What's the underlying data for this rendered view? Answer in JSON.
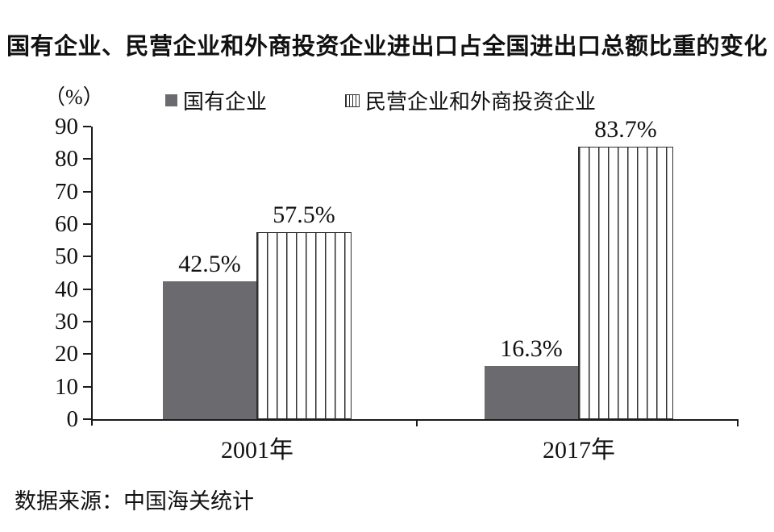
{
  "title": "国有企业、民营企业和外商投资企业进出口占全国进出口总额比重的变化",
  "unit_label": "（%）",
  "source_note": "数据来源：中国海关统计",
  "colors": {
    "bar_solid": "#6b6b6f",
    "stripe_line": "#2f2f2f",
    "axis": "#1a1a1a",
    "text": "#111111"
  },
  "chart_data": {
    "type": "bar",
    "title": "国有企业、民营企业和外商投资企业进出口占全国进出口总额比重的变化",
    "categories": [
      "2001年",
      "2017年"
    ],
    "series": [
      {
        "name": "国有企业",
        "style": "solid",
        "values": [
          42.5,
          16.3
        ],
        "labels": [
          "42.5%",
          "16.3%"
        ]
      },
      {
        "name": "民营企业和外商投资企业",
        "style": "striped",
        "values": [
          57.5,
          83.7
        ],
        "labels": [
          "57.5%",
          "83.7%"
        ]
      }
    ],
    "ylabel": "（%）",
    "ylim": [
      0,
      90
    ],
    "yticks": [
      0,
      10,
      20,
      30,
      40,
      50,
      60,
      70,
      80,
      90
    ],
    "grid": false,
    "legend_position": "top"
  }
}
